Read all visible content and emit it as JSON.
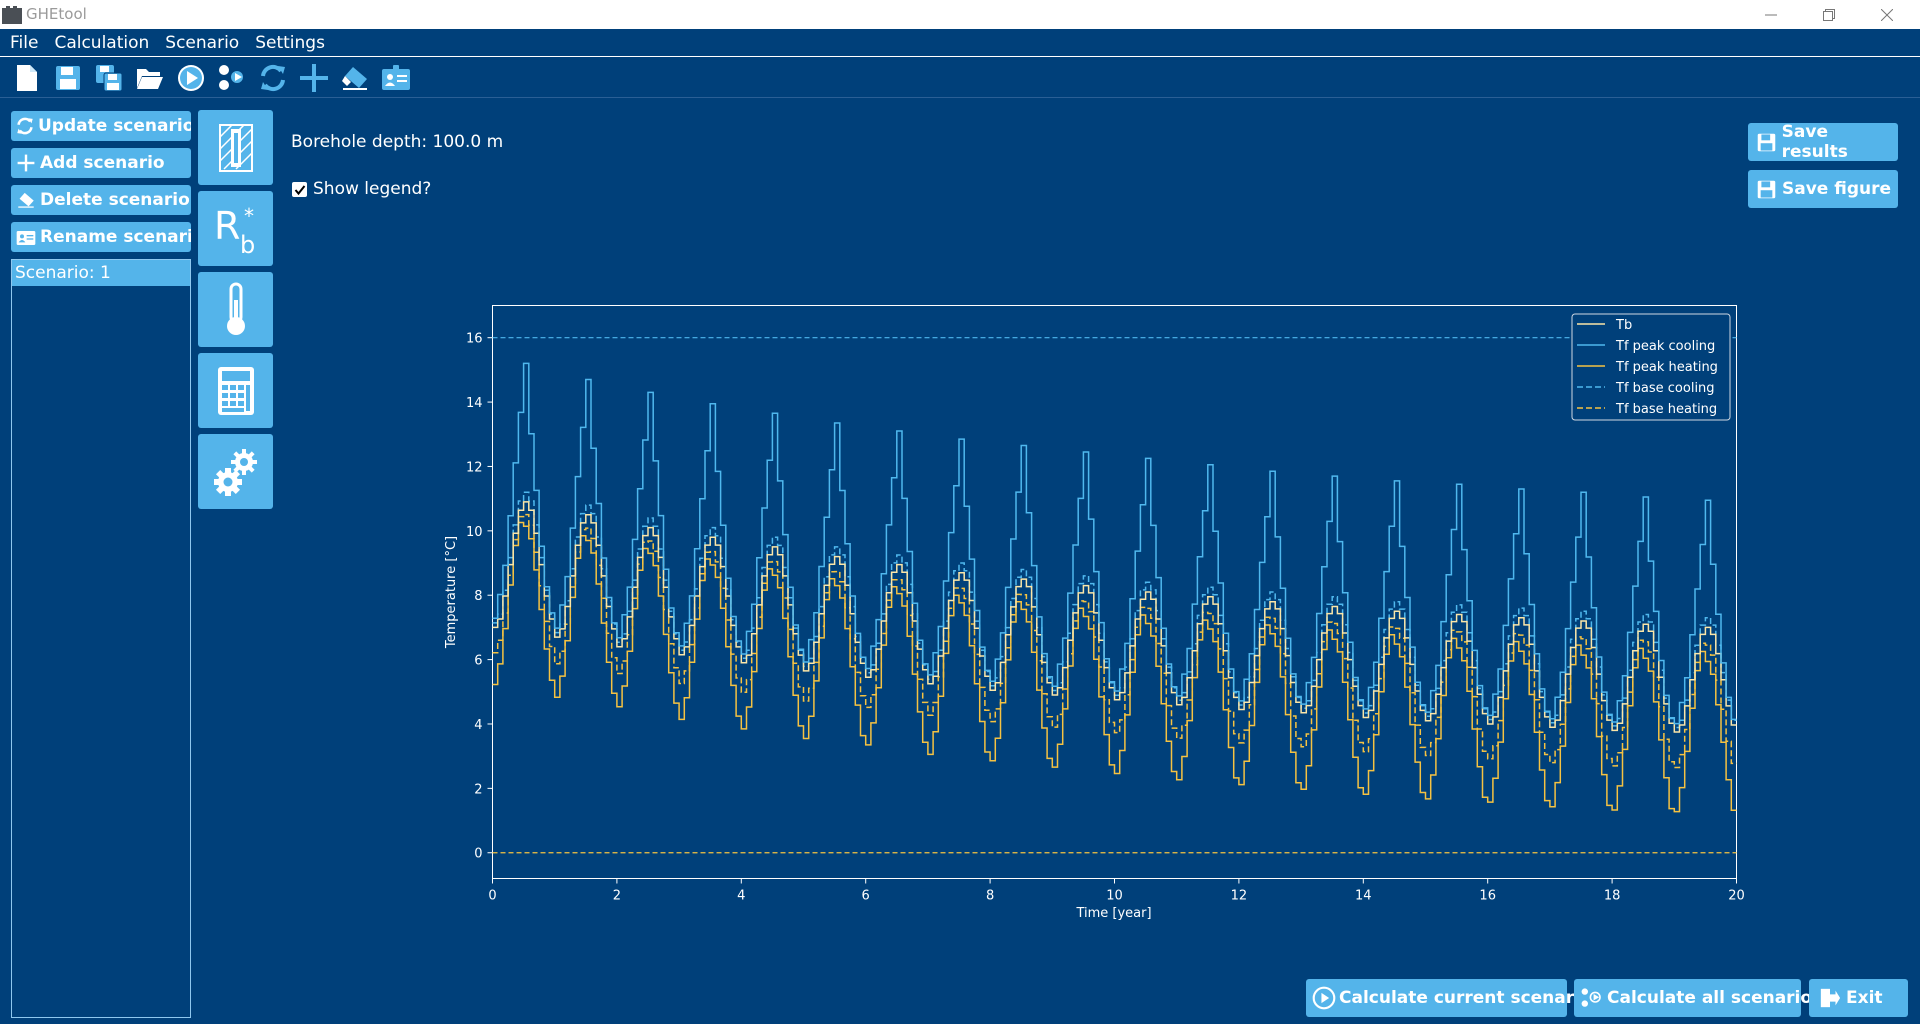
{
  "window": {
    "title": "GHEtool"
  },
  "menu": [
    "File",
    "Calculation",
    "Scenario",
    "Settings"
  ],
  "toolbar_icons": [
    "new-file-icon",
    "save-icon",
    "save-as-icon",
    "open-folder-icon",
    "run-icon",
    "run-all-icon",
    "update-icon",
    "add-icon",
    "eraser-icon",
    "rename-icon"
  ],
  "sidebar": {
    "update_scenario": "Update scenario",
    "add_scenario": "Add scenario",
    "delete_scenario": "Delete scenario",
    "rename_scenario": "Rename scenario",
    "scenarios": [
      "Scenario: 1"
    ]
  },
  "category_icons": [
    "borehole-icon",
    "rb-icon",
    "thermometer-icon",
    "calculator-icon",
    "gears-icon"
  ],
  "category_rb": {
    "main": "R",
    "sub": "b",
    "sup": "*"
  },
  "content": {
    "borehole_depth": "Borehole depth: 100.0 m",
    "show_legend_label": "Show legend?",
    "show_legend_checked": true,
    "save_results": "Save results",
    "save_figure": "Save figure"
  },
  "bottom": {
    "calculate_current": "Calculate current scenario",
    "calculate_all": "Calculate all scenarios",
    "exit": "Exit"
  },
  "colors": {
    "background": "#00407a",
    "button": "#54b4ea",
    "cooling": "#4fb8ee",
    "heating": "#f5c242",
    "tb": "#fbe6a8"
  },
  "chart_data": {
    "type": "line",
    "xlabel": "Time [year]",
    "ylabel": "Temperature [°C]",
    "xlim": [
      0,
      20
    ],
    "ylim": [
      -0.8,
      17.0
    ],
    "xticks": [
      0,
      2,
      4,
      6,
      8,
      10,
      12,
      14,
      16,
      18,
      20
    ],
    "yticks": [
      0,
      2,
      4,
      6,
      8,
      10,
      12,
      14,
      16
    ],
    "legend_position": "top-right",
    "limits": {
      "max_cooling": 16,
      "min_heating": 0
    },
    "year_summary": {
      "years": [
        1,
        2,
        3,
        4,
        5,
        6,
        7,
        8,
        9,
        10,
        11,
        12,
        13,
        14,
        15,
        16,
        17,
        18,
        19,
        20
      ],
      "tf_peak_cooling_max": [
        15.2,
        14.7,
        14.3,
        13.95,
        13.65,
        13.35,
        13.1,
        12.85,
        12.65,
        12.45,
        12.25,
        12.05,
        11.85,
        11.7,
        11.55,
        11.45,
        11.3,
        11.2,
        11.05,
        10.95
      ],
      "tf_peak_heating_min": [
        5.1,
        4.7,
        4.4,
        4.0,
        3.7,
        3.4,
        3.2,
        2.9,
        2.7,
        2.5,
        2.3,
        2.1,
        1.95,
        1.8,
        1.65,
        1.5,
        1.4,
        1.25,
        1.15,
        1.1
      ],
      "tb_max": [
        10.9,
        10.5,
        10.1,
        9.8,
        9.5,
        9.2,
        8.95,
        8.7,
        8.5,
        8.3,
        8.1,
        7.95,
        7.8,
        7.65,
        7.5,
        7.4,
        7.3,
        7.2,
        7.1,
        7.0
      ],
      "tb_min": [
        7.0,
        6.7,
        6.4,
        6.15,
        5.9,
        5.65,
        5.45,
        5.25,
        5.05,
        4.9,
        4.75,
        4.6,
        4.45,
        4.35,
        4.2,
        4.1,
        4.0,
        3.9,
        3.8,
        3.75
      ]
    },
    "series": [
      {
        "name": "Tb",
        "color": "#fbe6a8",
        "style": "solid"
      },
      {
        "name": "Tf peak cooling",
        "color": "#4fb8ee",
        "style": "solid"
      },
      {
        "name": "Tf peak heating",
        "color": "#f5c242",
        "style": "solid"
      },
      {
        "name": "Tf base cooling",
        "color": "#4fb8ee",
        "style": "dashed"
      },
      {
        "name": "Tf base heating",
        "color": "#f5c242",
        "style": "dashed"
      }
    ]
  }
}
